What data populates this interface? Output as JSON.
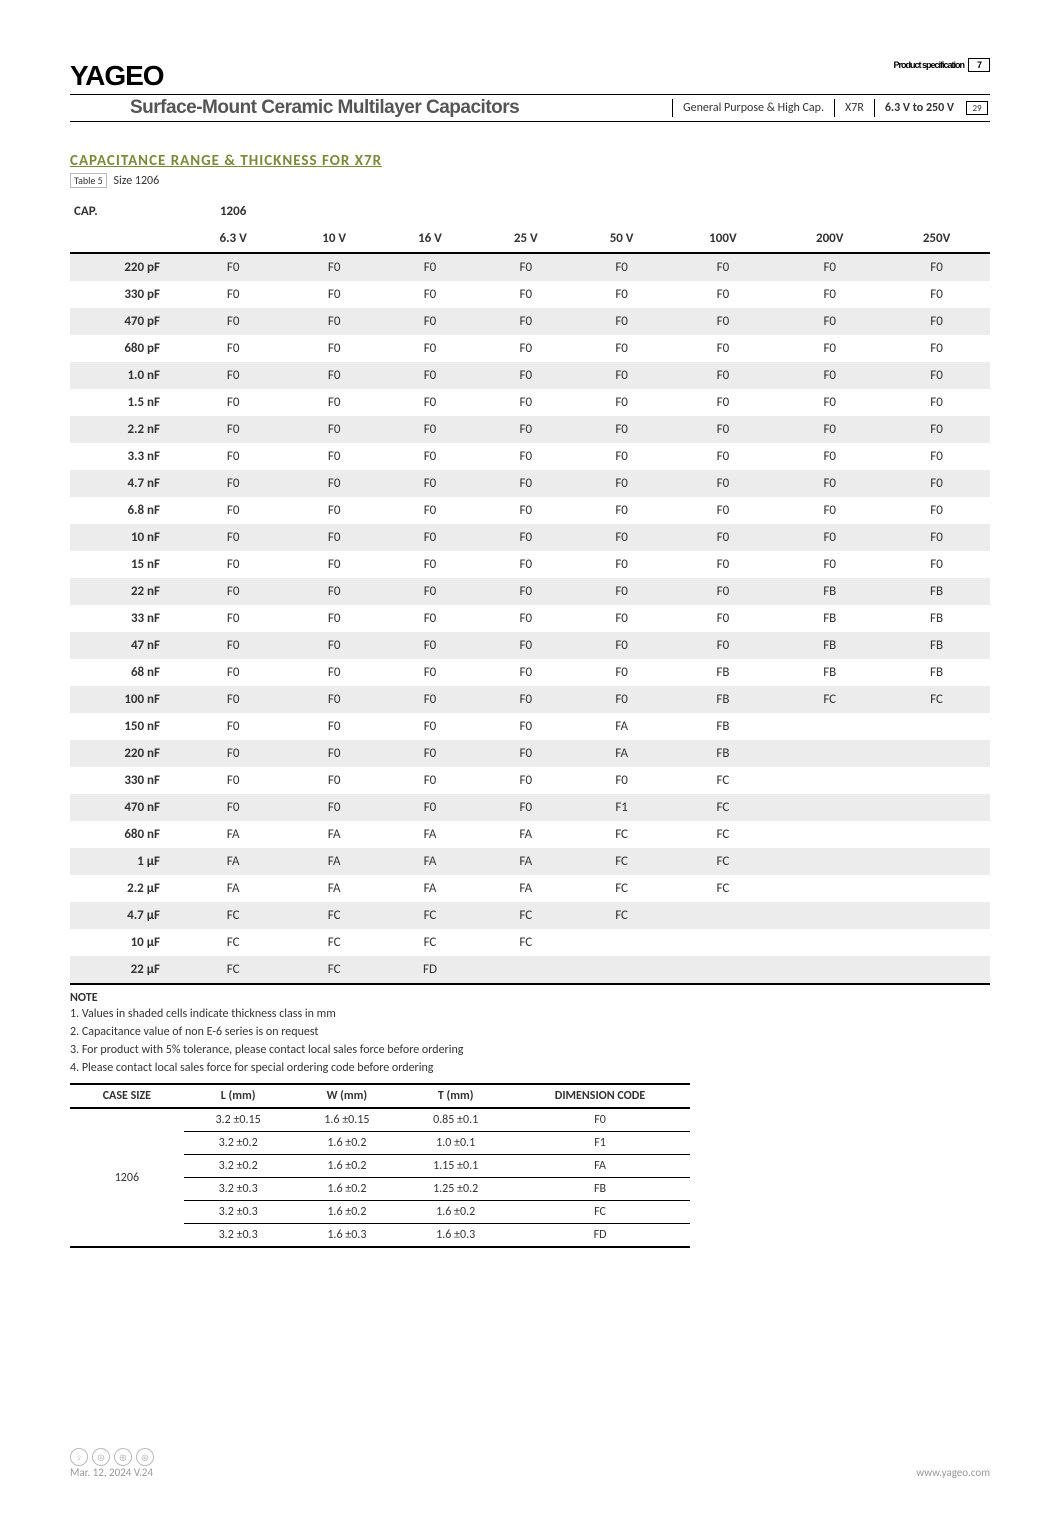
{
  "header": {
    "logo": "YAGEO",
    "prodspec_label": "Product specification",
    "page_num": "7",
    "page_total": "29",
    "spec_title": "Surface-Mount Ceramic Multilayer Capacitors",
    "spec_c1": "General Purpose & High Cap.",
    "spec_c2": "X7R",
    "spec_c3": "6.3 V to 250 V"
  },
  "section": {
    "title": "CAPACITANCE RANGE & THICKNESS FOR X7R",
    "table_label": "Table 5",
    "size_label": "Size 1206"
  },
  "table": {
    "cap_label": "CAP.",
    "size_head": "1206",
    "voltages": [
      "6.3 V",
      "10 V",
      "16 V",
      "25 V",
      "50 V",
      "100V",
      "200V",
      "250V"
    ],
    "rows": [
      {
        "cap": "220 pF",
        "v": [
          "F0",
          "F0",
          "F0",
          "F0",
          "F0",
          "F0",
          "F0",
          "F0"
        ]
      },
      {
        "cap": "330 pF",
        "v": [
          "F0",
          "F0",
          "F0",
          "F0",
          "F0",
          "F0",
          "F0",
          "F0"
        ]
      },
      {
        "cap": "470 pF",
        "v": [
          "F0",
          "F0",
          "F0",
          "F0",
          "F0",
          "F0",
          "F0",
          "F0"
        ]
      },
      {
        "cap": "680 pF",
        "v": [
          "F0",
          "F0",
          "F0",
          "F0",
          "F0",
          "F0",
          "F0",
          "F0"
        ]
      },
      {
        "cap": "1.0 nF",
        "v": [
          "F0",
          "F0",
          "F0",
          "F0",
          "F0",
          "F0",
          "F0",
          "F0"
        ]
      },
      {
        "cap": "1.5 nF",
        "v": [
          "F0",
          "F0",
          "F0",
          "F0",
          "F0",
          "F0",
          "F0",
          "F0"
        ]
      },
      {
        "cap": "2.2 nF",
        "v": [
          "F0",
          "F0",
          "F0",
          "F0",
          "F0",
          "F0",
          "F0",
          "F0"
        ]
      },
      {
        "cap": "3.3 nF",
        "v": [
          "F0",
          "F0",
          "F0",
          "F0",
          "F0",
          "F0",
          "F0",
          "F0"
        ]
      },
      {
        "cap": "4.7 nF",
        "v": [
          "F0",
          "F0",
          "F0",
          "F0",
          "F0",
          "F0",
          "F0",
          "F0"
        ]
      },
      {
        "cap": "6.8 nF",
        "v": [
          "F0",
          "F0",
          "F0",
          "F0",
          "F0",
          "F0",
          "F0",
          "F0"
        ]
      },
      {
        "cap": "10 nF",
        "v": [
          "F0",
          "F0",
          "F0",
          "F0",
          "F0",
          "F0",
          "F0",
          "F0"
        ]
      },
      {
        "cap": "15 nF",
        "v": [
          "F0",
          "F0",
          "F0",
          "F0",
          "F0",
          "F0",
          "F0",
          "F0"
        ]
      },
      {
        "cap": "22 nF",
        "v": [
          "F0",
          "F0",
          "F0",
          "F0",
          "F0",
          "F0",
          "FB",
          "FB"
        ]
      },
      {
        "cap": "33 nF",
        "v": [
          "F0",
          "F0",
          "F0",
          "F0",
          "F0",
          "F0",
          "FB",
          "FB"
        ]
      },
      {
        "cap": "47 nF",
        "v": [
          "F0",
          "F0",
          "F0",
          "F0",
          "F0",
          "F0",
          "FB",
          "FB"
        ]
      },
      {
        "cap": "68 nF",
        "v": [
          "F0",
          "F0",
          "F0",
          "F0",
          "F0",
          "FB",
          "FB",
          "FB"
        ]
      },
      {
        "cap": "100 nF",
        "v": [
          "F0",
          "F0",
          "F0",
          "F0",
          "F0",
          "FB",
          "FC",
          "FC"
        ]
      },
      {
        "cap": "150 nF",
        "v": [
          "F0",
          "F0",
          "F0",
          "F0",
          "FA",
          "FB",
          "",
          ""
        ]
      },
      {
        "cap": "220 nF",
        "v": [
          "F0",
          "F0",
          "F0",
          "F0",
          "FA",
          "FB",
          "",
          ""
        ]
      },
      {
        "cap": "330 nF",
        "v": [
          "F0",
          "F0",
          "F0",
          "F0",
          "F0",
          "FC",
          "",
          ""
        ]
      },
      {
        "cap": "470 nF",
        "v": [
          "F0",
          "F0",
          "F0",
          "F0",
          "F1",
          "FC",
          "",
          ""
        ]
      },
      {
        "cap": "680 nF",
        "v": [
          "FA",
          "FA",
          "FA",
          "FA",
          "FC",
          "FC",
          "",
          ""
        ]
      },
      {
        "cap": "1 µF",
        "v": [
          "FA",
          "FA",
          "FA",
          "FA",
          "FC",
          "FC",
          "",
          ""
        ]
      },
      {
        "cap": "2.2 µF",
        "v": [
          "FA",
          "FA",
          "FA",
          "FA",
          "FC",
          "FC",
          "",
          ""
        ]
      },
      {
        "cap": "4.7 µF",
        "v": [
          "FC",
          "FC",
          "FC",
          "FC",
          "FC",
          "",
          "",
          ""
        ]
      },
      {
        "cap": "10 µF",
        "v": [
          "FC",
          "FC",
          "FC",
          "FC",
          "",
          "",
          "",
          ""
        ]
      },
      {
        "cap": "22 µF",
        "v": [
          "FC",
          "FC",
          "FD",
          "",
          "",
          "",
          "",
          ""
        ]
      }
    ]
  },
  "notes": {
    "head": "NOTE",
    "items": [
      "1. Values in shaded cells indicate thickness class in mm",
      "2. Capacitance value of non E-6 series is on request",
      "3. For product with 5% tolerance, please contact local sales force before ordering",
      "4. Please contact local sales force for special ordering code before ordering"
    ]
  },
  "dim": {
    "headers": [
      "CASE SIZE",
      "L (mm)",
      "W (mm)",
      "T (mm)",
      "DIMENSION CODE"
    ],
    "case": "1206",
    "rows": [
      [
        "3.2 ±0.15",
        "1.6 ±0.15",
        "0.85 ±0.1",
        "F0"
      ],
      [
        "3.2 ±0.2",
        "1.6 ±0.2",
        "1.0 ±0.1",
        "F1"
      ],
      [
        "3.2 ±0.2",
        "1.6 ±0.2",
        "1.15 ±0.1",
        "FA"
      ],
      [
        "3.2 ±0.3",
        "1.6 ±0.2",
        "1.25 ±0.2",
        "FB"
      ],
      [
        "3.2 ±0.3",
        "1.6 ±0.2",
        "1.6 ±0.2",
        "FC"
      ],
      [
        "3.2 ±0.3",
        "1.6 ±0.3",
        "1.6 ±0.3",
        "FD"
      ]
    ]
  },
  "footer": {
    "date": "Mar. 12, 2024  V.24",
    "url": "www.yageo.com"
  }
}
